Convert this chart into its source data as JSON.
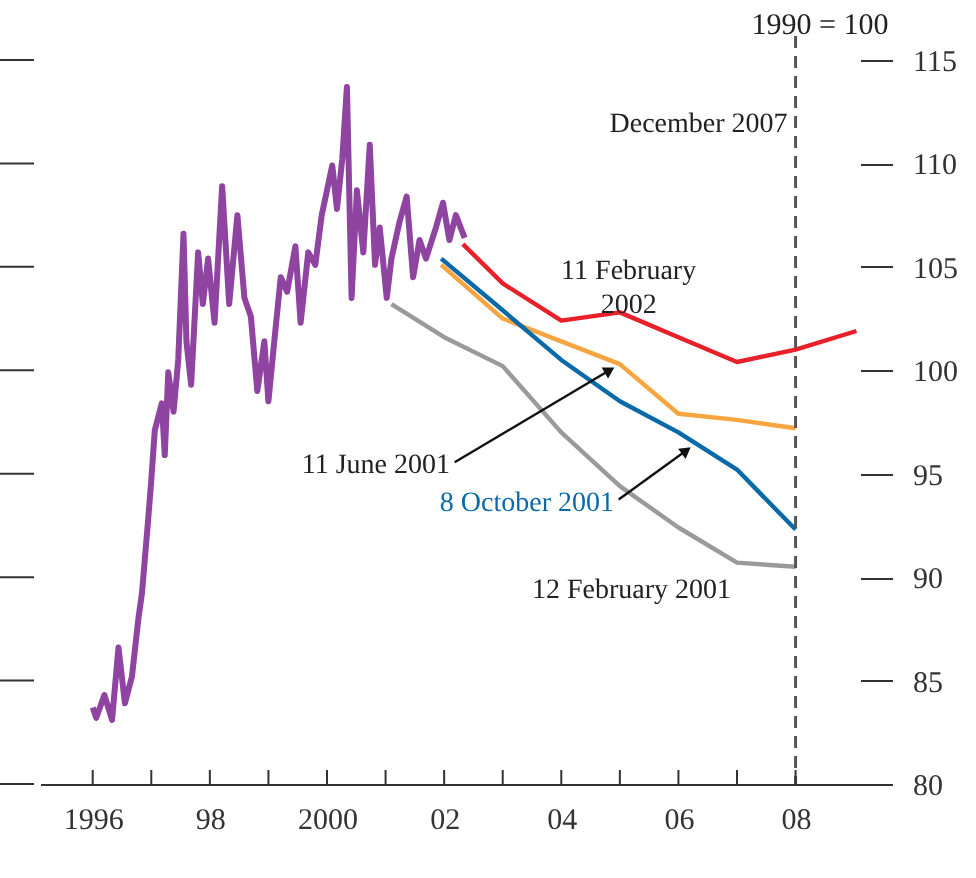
{
  "chart_data": {
    "type": "line",
    "xlim": [
      1995.1,
      2009.1
    ],
    "xticks": [
      {
        "value": 1996,
        "label": "1996"
      },
      {
        "value": 1997,
        "label": null
      },
      {
        "value": 1998,
        "label": "98"
      },
      {
        "value": 1999,
        "label": null
      },
      {
        "value": 2000,
        "label": "2000"
      },
      {
        "value": 2001,
        "label": null
      },
      {
        "value": 2002,
        "label": "02"
      },
      {
        "value": 2003,
        "label": null
      },
      {
        "value": 2004,
        "label": "04"
      },
      {
        "value": 2005,
        "label": null
      },
      {
        "value": 2006,
        "label": "06"
      },
      {
        "value": 2007,
        "label": null
      },
      {
        "value": 2008,
        "label": "08"
      }
    ],
    "ylim": [
      80,
      115
    ],
    "yticks": [
      80,
      85,
      90,
      95,
      100,
      105,
      110,
      115
    ],
    "line_style": "solid",
    "series": [
      {
        "color": "#8e44a0",
        "x": [
          1996.0,
          1996.06,
          1996.2,
          1996.33,
          1996.44,
          1996.55,
          1996.67,
          1996.78,
          1996.84,
          1996.95,
          1997.0,
          1997.06,
          1997.18,
          1997.23,
          1997.29,
          1997.38,
          1997.46,
          1997.55,
          1997.6,
          1997.68,
          1997.8,
          1997.88,
          1997.97,
          1998.08,
          1998.21,
          1998.33,
          1998.47,
          1998.59,
          1998.7,
          1998.81,
          1998.93,
          1999.0,
          1999.1,
          1999.21,
          1999.32,
          1999.46,
          1999.55,
          1999.68,
          1999.8,
          1999.91,
          2000.0,
          2000.09,
          2000.17,
          2000.26,
          2000.34,
          2000.42,
          2000.51,
          2000.62,
          2000.73,
          2000.82,
          2000.9,
          2001.02,
          2001.1,
          2001.24,
          2001.36,
          2001.47,
          2001.58,
          2001.69,
          2001.86,
          2001.98,
          2002.09,
          2002.2,
          2002.35
        ],
        "values": [
          83.7,
          83.2,
          84.3,
          83.1,
          86.6,
          83.9,
          85.2,
          88.0,
          89.2,
          92.9,
          94.7,
          97.1,
          98.4,
          95.9,
          99.9,
          98.0,
          100.5,
          106.6,
          101.4,
          99.3,
          105.7,
          103.2,
          105.4,
          102.3,
          108.9,
          103.2,
          107.5,
          103.5,
          102.6,
          99.0,
          101.4,
          98.5,
          101.4,
          104.5,
          103.8,
          106.0,
          102.3,
          105.7,
          105.1,
          107.5,
          108.7,
          109.9,
          107.8,
          110.2,
          113.7,
          103.5,
          108.7,
          105.7,
          110.9,
          105.1,
          106.9,
          103.5,
          105.4,
          107.2,
          108.4,
          104.5,
          106.3,
          105.4,
          106.9,
          108.1,
          106.3,
          107.5,
          106.4
        ]
      },
      {
        "name": "12 February 2001",
        "color": "#9a9a9a",
        "x": [
          2001.1,
          2002,
          2003,
          2004,
          2005,
          2006,
          2007,
          2008
        ],
        "values": [
          103.2,
          101.6,
          100.2,
          97.0,
          94.4,
          92.4,
          90.7,
          90.5
        ]
      },
      {
        "name": "11 June 2001",
        "color": "#f7a540",
        "x": [
          2001.95,
          2003,
          2004,
          2005,
          2006,
          2007,
          2008
        ],
        "values": [
          105.1,
          102.5,
          101.4,
          100.3,
          97.9,
          97.6,
          97.2
        ]
      },
      {
        "name": "8 October 2001",
        "color": "#0a6aa8",
        "x": [
          2001.95,
          2003,
          2004,
          2005,
          2006,
          2007,
          2008
        ],
        "values": [
          105.4,
          102.9,
          100.5,
          98.5,
          97.0,
          95.2,
          92.3
        ]
      },
      {
        "name": "11 February 2002",
        "color": "#e8202a",
        "x": [
          2002.32,
          2003,
          2004,
          2005,
          2006,
          2007,
          2008,
          2009.04
        ],
        "values": [
          106.1,
          104.2,
          102.4,
          102.8,
          101.6,
          100.4,
          101.0,
          101.9
        ]
      }
    ],
    "ref_lines": [
      {
        "axis": "x",
        "value": 2008,
        "label": "December 2007",
        "line_style": "dashed",
        "color": "#555555"
      }
    ],
    "annotations": [
      "1990 = 100"
    ]
  }
}
